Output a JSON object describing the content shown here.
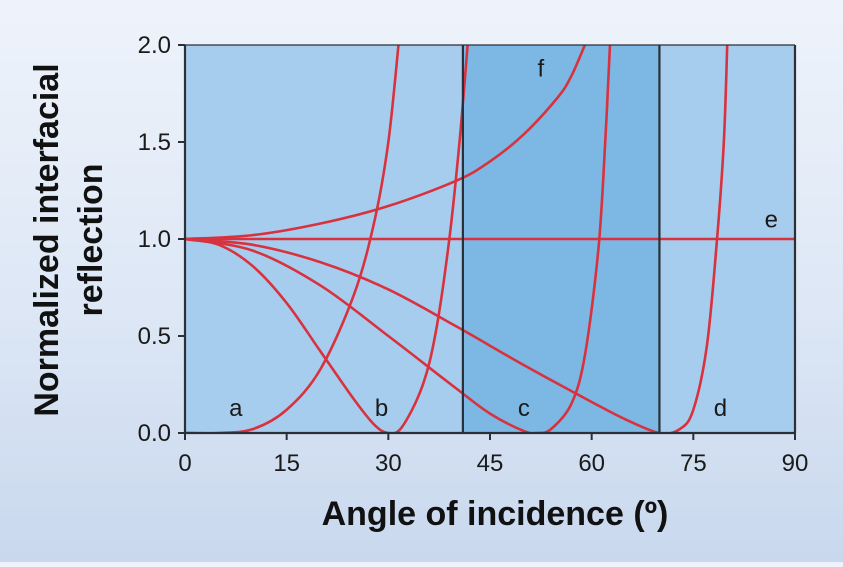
{
  "chart_data": {
    "type": "line",
    "xlabel": "Angle of incidence (º)",
    "ylabel_lines": [
      "Normalized interfacial",
      "reflection"
    ],
    "xlim": [
      0,
      90
    ],
    "ylim": [
      0,
      2.0
    ],
    "x_ticks": [
      0,
      15,
      30,
      45,
      60,
      75,
      90
    ],
    "y_ticks": [
      0.0,
      0.5,
      1.0,
      1.5,
      2.0
    ],
    "x_tick_labels": [
      "0",
      "15",
      "30",
      "45",
      "60",
      "75",
      "90"
    ],
    "y_tick_labels": [
      "0.0",
      "0.5",
      "1.0",
      "1.5",
      "2.0"
    ],
    "grid": false,
    "colors": {
      "plot_background": "#a7cdee",
      "highlight_band": "#7cb8e3",
      "curve": "#d8323f",
      "frame": "#2b2f36"
    },
    "shaded_regions": [
      {
        "x_start": 41,
        "x_end": 70
      }
    ],
    "vertical_lines": [
      0,
      41,
      70,
      90
    ],
    "series": [
      {
        "name": "a",
        "label_at": {
          "x": 7.5,
          "y": 0.13
        },
        "points": [
          [
            0,
            0
          ],
          [
            5,
            0
          ],
          [
            10,
            0.02
          ],
          [
            15,
            0.12
          ],
          [
            20,
            0.33
          ],
          [
            25,
            0.72
          ],
          [
            28,
            1.1
          ],
          [
            30,
            1.5
          ],
          [
            31.5,
            2.0
          ]
        ]
      },
      {
        "name": "b",
        "label_at": {
          "x": 29,
          "y": 0.13
        },
        "points": [
          [
            0,
            1.0
          ],
          [
            5,
            0.97
          ],
          [
            10,
            0.86
          ],
          [
            15,
            0.67
          ],
          [
            20,
            0.42
          ],
          [
            25,
            0.17
          ],
          [
            28,
            0.04
          ],
          [
            30,
            0
          ],
          [
            32,
            0.03
          ],
          [
            35,
            0.24
          ],
          [
            37,
            0.52
          ],
          [
            39,
            1.0
          ],
          [
            40.5,
            1.5
          ],
          [
            41.7,
            2.0
          ]
        ]
      },
      {
        "name": "c",
        "label_at": {
          "x": 50,
          "y": 0.13
        },
        "points": [
          [
            0,
            1.0
          ],
          [
            10,
            0.94
          ],
          [
            20,
            0.76
          ],
          [
            30,
            0.5
          ],
          [
            40,
            0.23
          ],
          [
            45,
            0.1
          ],
          [
            50,
            0.01
          ],
          [
            52,
            0
          ],
          [
            54,
            0.02
          ],
          [
            57,
            0.15
          ],
          [
            59,
            0.4
          ],
          [
            61,
            0.95
          ],
          [
            62,
            1.5
          ],
          [
            62.7,
            2.0
          ]
        ]
      },
      {
        "name": "d",
        "label_at": {
          "x": 79,
          "y": 0.13
        },
        "points": [
          [
            0,
            1.0
          ],
          [
            10,
            0.97
          ],
          [
            20,
            0.88
          ],
          [
            30,
            0.74
          ],
          [
            40,
            0.55
          ],
          [
            50,
            0.35
          ],
          [
            60,
            0.16
          ],
          [
            65,
            0.07
          ],
          [
            70,
            0
          ],
          [
            73,
            0.02
          ],
          [
            75,
            0.12
          ],
          [
            77,
            0.45
          ],
          [
            78.5,
            1.0
          ],
          [
            79.5,
            1.5
          ],
          [
            80,
            2.0
          ]
        ]
      },
      {
        "name": "e",
        "label_at": {
          "x": 86.5,
          "y": 1.1
        },
        "points": [
          [
            0,
            1.0
          ],
          [
            90,
            1.0
          ]
        ]
      },
      {
        "name": "f",
        "label_at": {
          "x": 52.5,
          "y": 1.88
        },
        "points": [
          [
            0,
            1.0
          ],
          [
            10,
            1.02
          ],
          [
            20,
            1.08
          ],
          [
            30,
            1.17
          ],
          [
            40,
            1.3
          ],
          [
            45,
            1.4
          ],
          [
            50,
            1.54
          ],
          [
            55,
            1.73
          ],
          [
            57,
            1.84
          ],
          [
            59,
            2.0
          ]
        ]
      }
    ]
  }
}
